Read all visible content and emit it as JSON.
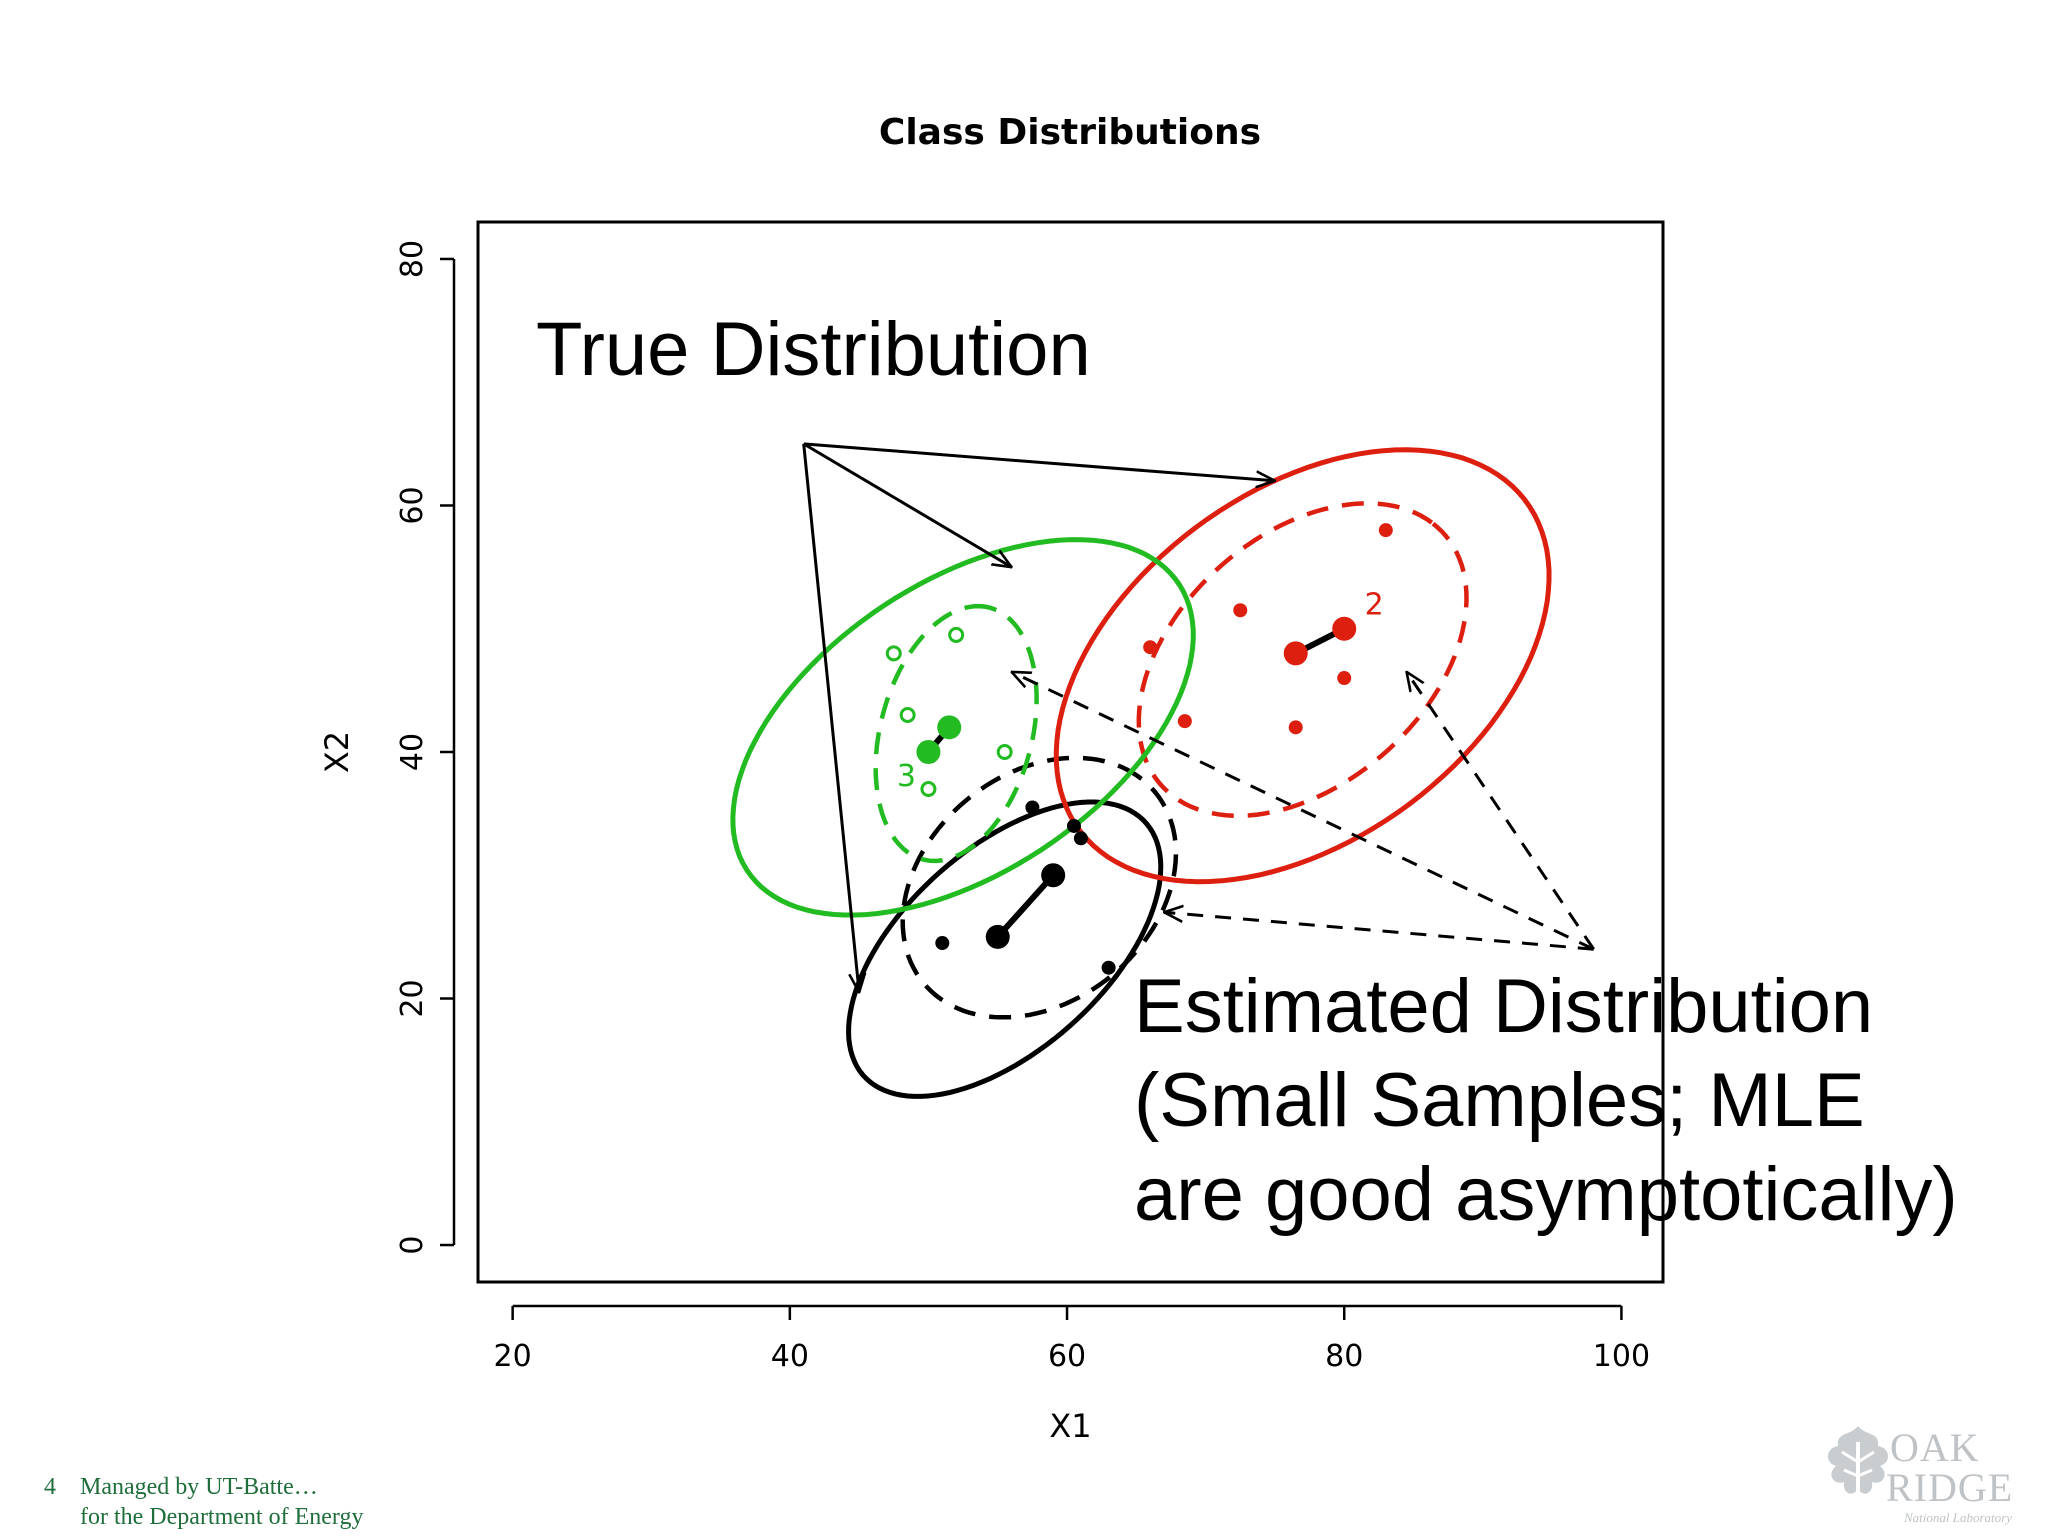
{
  "slide": {
    "page_number": "4",
    "footer_line1": "Managed by UT-Batte…",
    "footer_line2": "for the Department of Energy",
    "logo_word1": "OAK",
    "logo_word2": "RIDGE",
    "logo_sub": "National Laboratory",
    "logo_icon": "leaf-icon"
  },
  "annotations": {
    "true_distribution": "True Distribution",
    "estimated_lines": [
      "Estimated Distribution",
      "(Small Samples; MLE",
      "are good asymptotically)"
    ]
  },
  "chart_data": {
    "type": "scatter",
    "title": "Class Distributions",
    "xlabel": "X1",
    "ylabel": "X2",
    "xlim": [
      17.5,
      103
    ],
    "ylim": [
      -3,
      83
    ],
    "xticks": [
      20,
      40,
      60,
      80,
      100
    ],
    "yticks": [
      0,
      20,
      40,
      60,
      80
    ],
    "grid": false,
    "classes": [
      {
        "color": "#000000",
        "label": "",
        "true_ellipse": {
          "cx": 55.5,
          "cy": 24,
          "rx": 14.5,
          "ry": 7.7,
          "angle_deg": 48
        },
        "estimated_ellipse": {
          "cx": 58,
          "cy": 29,
          "rx": 11.5,
          "ry": 8.7,
          "angle_deg": 52
        },
        "true_mean": [
          55,
          25
        ],
        "estimated_mean": [
          59,
          30
        ],
        "points": [
          [
            57.5,
            35.5
          ],
          [
            60.5,
            34
          ],
          [
            61,
            33
          ],
          [
            51,
            24.5
          ],
          [
            63,
            22.5
          ]
        ],
        "point_marker": "filled"
      },
      {
        "color": "#dd1f10",
        "label": "2",
        "true_ellipse": {
          "cx": 77,
          "cy": 47,
          "rx": 21,
          "ry": 13.5,
          "angle_deg": 44
        },
        "estimated_ellipse": {
          "cx": 77,
          "cy": 47.5,
          "rx": 14.5,
          "ry": 9.5,
          "angle_deg": 50
        },
        "true_mean": [
          76.5,
          48
        ],
        "estimated_mean": [
          80,
          50
        ],
        "points": [
          [
            83,
            58
          ],
          [
            72.5,
            51.5
          ],
          [
            80,
            46
          ],
          [
            68.5,
            42.5
          ],
          [
            76.5,
            42
          ],
          [
            66,
            48.5
          ]
        ],
        "point_marker": "filled"
      },
      {
        "color": "#22bb22",
        "label": "3",
        "true_ellipse": {
          "cx": 52.5,
          "cy": 42,
          "rx": 19.5,
          "ry": 11.3,
          "angle_deg": 40
        },
        "estimated_ellipse": {
          "cx": 52,
          "cy": 41.5,
          "rx": 10.5,
          "ry": 5.5,
          "angle_deg": 78
        },
        "true_mean": [
          50,
          40
        ],
        "estimated_mean": [
          51.5,
          42
        ],
        "points": [
          [
            52,
            49.5
          ],
          [
            48.5,
            43
          ],
          [
            55.5,
            40
          ],
          [
            50,
            37
          ],
          [
            47.5,
            48
          ]
        ],
        "point_marker": "open"
      }
    ]
  }
}
